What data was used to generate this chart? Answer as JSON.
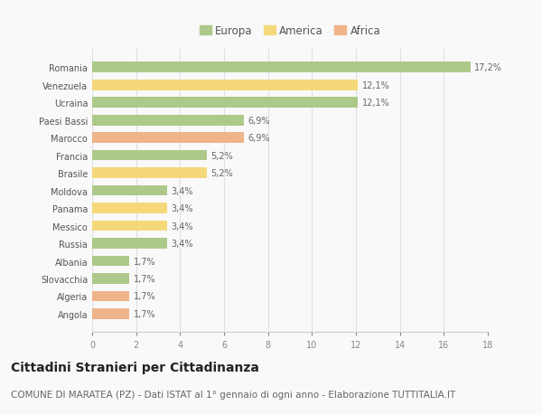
{
  "countries": [
    "Romania",
    "Venezuela",
    "Ucraina",
    "Paesi Bassi",
    "Marocco",
    "Francia",
    "Brasile",
    "Moldova",
    "Panama",
    "Messico",
    "Russia",
    "Albania",
    "Slovacchia",
    "Algeria",
    "Angola"
  ],
  "values": [
    17.2,
    12.1,
    12.1,
    6.9,
    6.9,
    5.2,
    5.2,
    3.4,
    3.4,
    3.4,
    3.4,
    1.7,
    1.7,
    1.7,
    1.7
  ],
  "labels": [
    "17,2%",
    "12,1%",
    "12,1%",
    "6,9%",
    "6,9%",
    "5,2%",
    "5,2%",
    "3,4%",
    "3,4%",
    "3,4%",
    "3,4%",
    "1,7%",
    "1,7%",
    "1,7%",
    "1,7%"
  ],
  "continents": [
    "Europa",
    "America",
    "Europa",
    "Europa",
    "Africa",
    "Europa",
    "America",
    "Europa",
    "America",
    "America",
    "Europa",
    "Europa",
    "Europa",
    "Africa",
    "Africa"
  ],
  "colors": {
    "Europa": "#adc98a",
    "America": "#f5d87a",
    "Africa": "#f0b48a"
  },
  "xlim": [
    0,
    18
  ],
  "xticks": [
    0,
    2,
    4,
    6,
    8,
    10,
    12,
    14,
    16,
    18
  ],
  "title": "Cittadini Stranieri per Cittadinanza",
  "subtitle": "COMUNE DI MARATEA (PZ) - Dati ISTAT al 1° gennaio di ogni anno - Elaborazione TUTTITALIA.IT",
  "background_color": "#f9f9f9",
  "grid_color": "#e0e0e0",
  "bar_height": 0.6,
  "title_fontsize": 10,
  "subtitle_fontsize": 7.5,
  "label_fontsize": 7,
  "tick_fontsize": 7,
  "legend_fontsize": 8.5
}
